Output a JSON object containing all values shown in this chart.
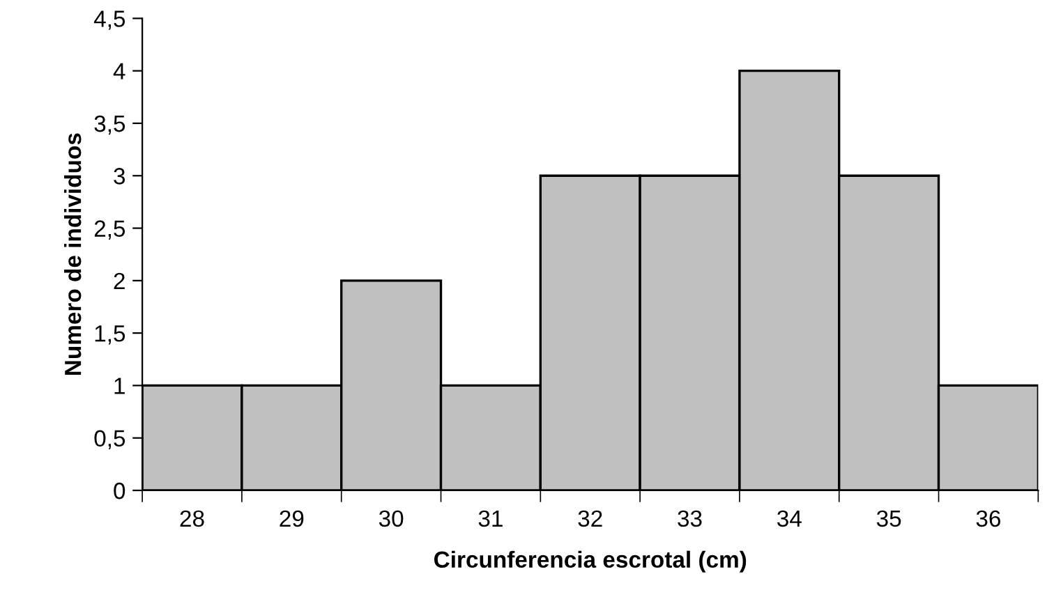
{
  "chart_data": {
    "type": "bar",
    "xlabel": "Circunferencia escrotal (cm)",
    "ylabel": "Numero de individuos",
    "categories": [
      "28",
      "29",
      "30",
      "31",
      "32",
      "33",
      "34",
      "35",
      "36"
    ],
    "values": [
      1,
      1,
      2,
      1,
      3,
      3,
      4,
      3,
      1
    ],
    "color": "#c0c0c0",
    "ylim": [
      0,
      4.5
    ],
    "yticks": [
      0,
      {
        "value": 0.5,
        "label": "0,5"
      },
      1,
      {
        "value": 1.5,
        "label": "1,5"
      },
      2,
      {
        "value": 2.5,
        "label": "2,5"
      },
      3,
      {
        "value": 3.5,
        "label": "3,5"
      },
      4,
      {
        "value": 4.5,
        "label": "4,5"
      }
    ],
    "grid": false,
    "legend": false
  }
}
